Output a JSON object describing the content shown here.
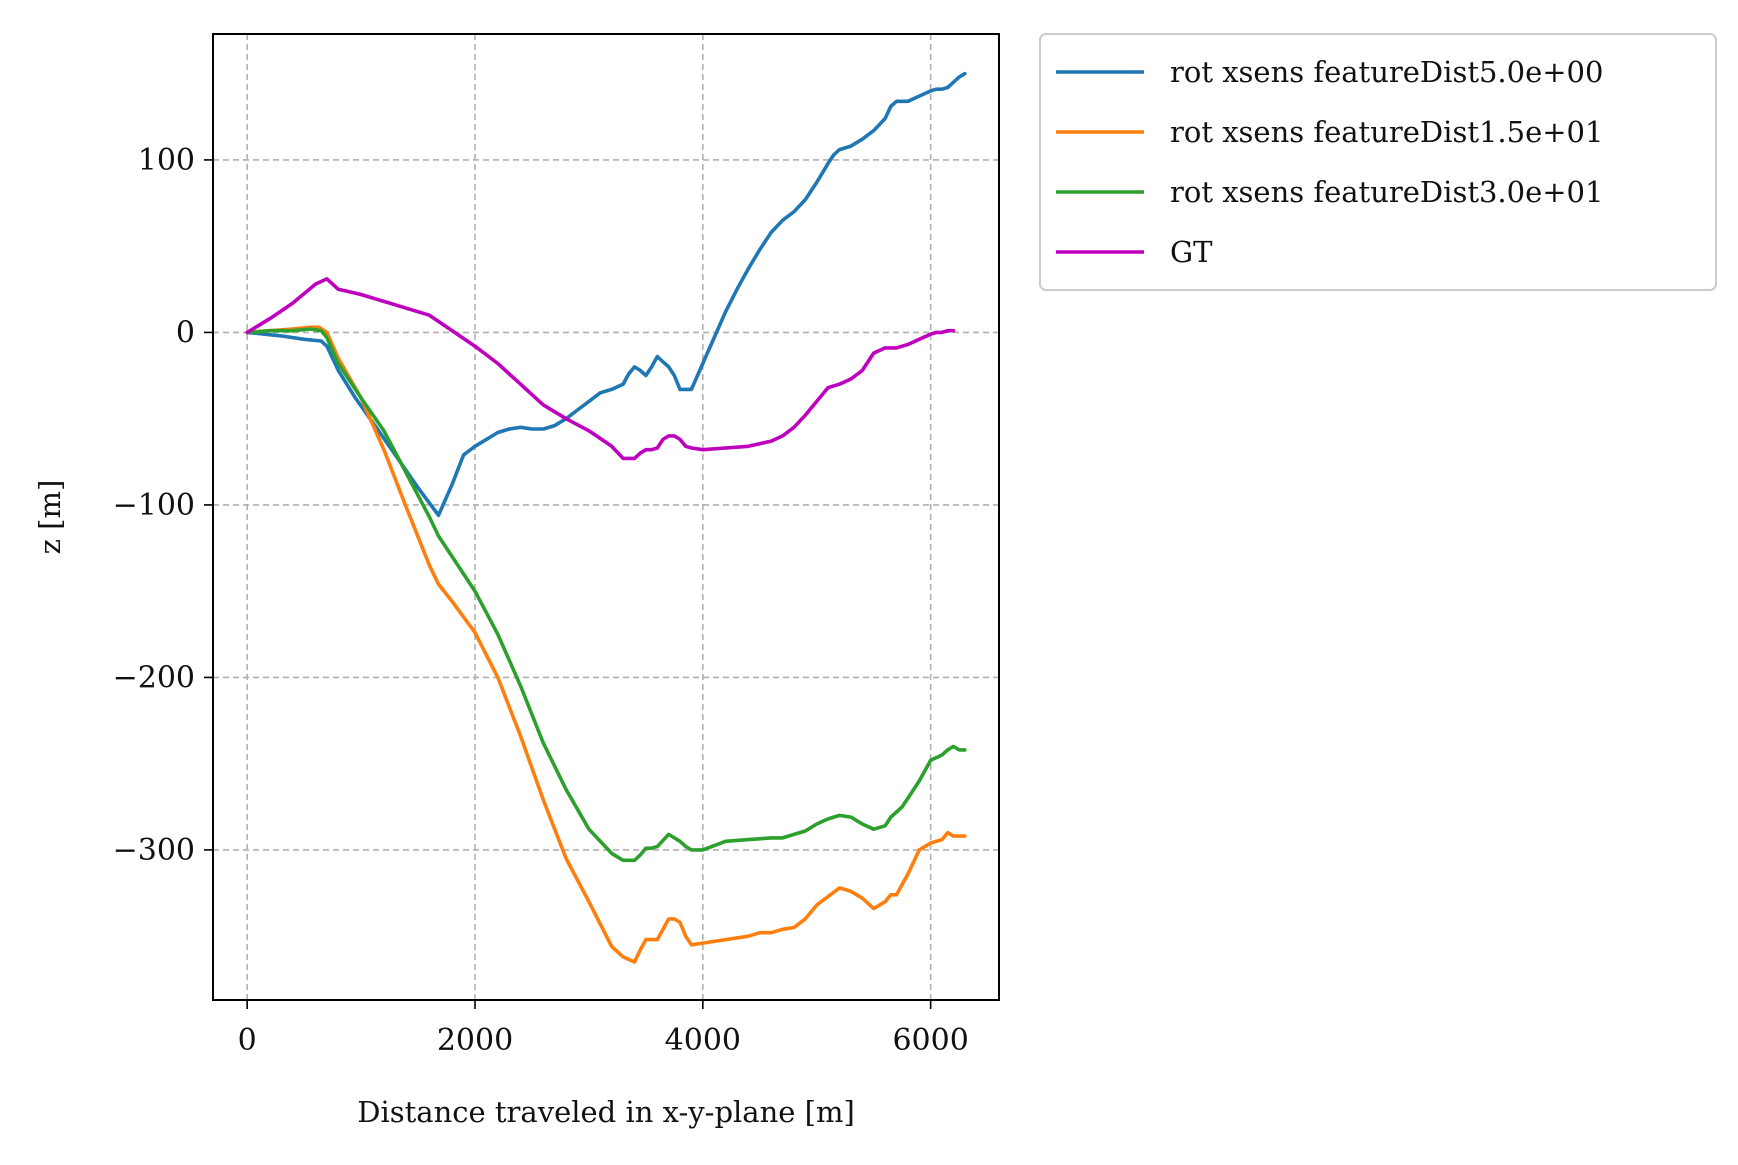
{
  "chart_data": {
    "type": "line",
    "title": "",
    "xlabel": "Distance traveled in x-y-plane [m]",
    "ylabel": "z [m]",
    "xlim": [
      -300,
      6600
    ],
    "ylim": [
      -387,
      173
    ],
    "xticks": [
      0,
      2000,
      4000,
      6000
    ],
    "xtick_labels": [
      "0",
      "2000",
      "4000",
      "6000"
    ],
    "yticks": [
      100,
      0,
      -100,
      -200,
      -300
    ],
    "ytick_labels": [
      "100",
      "0",
      "−100",
      "−200",
      "−300"
    ],
    "grid": true,
    "legend_position": "outside-top-right",
    "series": [
      {
        "name": "rot xsens featureDist5.0e+00",
        "color": "#1f77b4",
        "x": [
          0,
          300,
          500,
          650,
          700,
          800,
          950,
          1100,
          1300,
          1500,
          1680,
          1800,
          1900,
          2000,
          2100,
          2200,
          2300,
          2400,
          2500,
          2600,
          2700,
          2800,
          2900,
          3000,
          3100,
          3200,
          3300,
          3350,
          3400,
          3450,
          3500,
          3550,
          3600,
          3650,
          3700,
          3750,
          3800,
          3850,
          3900,
          4000,
          4100,
          4200,
          4300,
          4400,
          4500,
          4600,
          4700,
          4800,
          4900,
          5000,
          5100,
          5150,
          5200,
          5300,
          5400,
          5500,
          5600,
          5650,
          5700,
          5800,
          5900,
          6000,
          6050,
          6100,
          6150,
          6200,
          6250,
          6300
        ],
        "y": [
          0,
          -2,
          -4,
          -5,
          -8,
          -22,
          -38,
          -52,
          -71,
          -90,
          -106,
          -88,
          -71,
          -66,
          -62,
          -58,
          -56,
          -55,
          -56,
          -56,
          -54,
          -50,
          -45,
          -40,
          -35,
          -33,
          -30,
          -24,
          -20,
          -22,
          -25,
          -20,
          -14,
          -17,
          -20,
          -25,
          -33,
          -33,
          -33,
          -18,
          -3,
          12,
          25,
          37,
          48,
          58,
          65,
          70,
          77,
          87,
          98,
          103,
          106,
          108,
          112,
          117,
          124,
          131,
          134,
          134,
          137,
          140,
          141,
          141,
          142,
          145,
          148,
          150
        ]
      },
      {
        "name": "rot xsens featureDist1.5e+01",
        "color": "#ff7f0e",
        "x": [
          0,
          200,
          400,
          550,
          630,
          700,
          800,
          1000,
          1200,
          1400,
          1600,
          1680,
          1800,
          2000,
          2200,
          2400,
          2600,
          2800,
          3000,
          3200,
          3300,
          3400,
          3450,
          3500,
          3550,
          3600,
          3650,
          3700,
          3750,
          3800,
          3850,
          3900,
          4000,
          4200,
          4400,
          4500,
          4600,
          4700,
          4800,
          4900,
          5000,
          5100,
          5200,
          5300,
          5400,
          5500,
          5600,
          5650,
          5700,
          5750,
          5800,
          5900,
          6000,
          6100,
          6150,
          6200,
          6250,
          6300
        ],
        "y": [
          0,
          1,
          2,
          3,
          3,
          0,
          -15,
          -38,
          -68,
          -102,
          -135,
          -146,
          -156,
          -174,
          -200,
          -234,
          -271,
          -305,
          -330,
          -356,
          -362,
          -365,
          -358,
          -352,
          -352,
          -352,
          -346,
          -340,
          -340,
          -342,
          -350,
          -355,
          -354,
          -352,
          -350,
          -348,
          -348,
          -346,
          -345,
          -340,
          -332,
          -327,
          -322,
          -324,
          -328,
          -334,
          -330,
          -326,
          -326,
          -320,
          -314,
          -300,
          -296,
          -294,
          -290,
          -292,
          -292,
          -292
        ]
      },
      {
        "name": "rot xsens featureDist3.0e+01",
        "color": "#2ca02c",
        "x": [
          0,
          200,
          400,
          550,
          650,
          700,
          800,
          1000,
          1200,
          1400,
          1600,
          1680,
          1800,
          2000,
          2200,
          2400,
          2600,
          2800,
          3000,
          3200,
          3300,
          3400,
          3450,
          3500,
          3550,
          3600,
          3700,
          3800,
          3850,
          3900,
          4000,
          4200,
          4400,
          4600,
          4700,
          4800,
          4900,
          5000,
          5100,
          5200,
          5300,
          5400,
          5500,
          5600,
          5650,
          5700,
          5750,
          5800,
          5900,
          6000,
          6100,
          6150,
          6200,
          6250,
          6300
        ],
        "y": [
          0,
          1,
          1,
          2,
          1,
          -3,
          -18,
          -38,
          -57,
          -82,
          -107,
          -118,
          -130,
          -150,
          -175,
          -205,
          -238,
          -265,
          -288,
          -302,
          -306,
          -306,
          -303,
          -299,
          -299,
          -298,
          -291,
          -295,
          -298,
          -300,
          -300,
          -295,
          -294,
          -293,
          -293,
          -291,
          -289,
          -285,
          -282,
          -280,
          -281,
          -285,
          -288,
          -286,
          -281,
          -278,
          -275,
          -270,
          -260,
          -248,
          -245,
          -242,
          -240,
          -242,
          -242
        ]
      },
      {
        "name": "GT",
        "color": "#bf00bf",
        "x": [
          0,
          200,
          400,
          600,
          700,
          800,
          1000,
          1200,
          1400,
          1600,
          1800,
          2000,
          2200,
          2400,
          2600,
          2800,
          3000,
          3200,
          3300,
          3400,
          3450,
          3500,
          3550,
          3600,
          3650,
          3700,
          3750,
          3800,
          3850,
          3900,
          4000,
          4200,
          4400,
          4600,
          4700,
          4800,
          4900,
          5000,
          5100,
          5200,
          5300,
          5400,
          5500,
          5600,
          5650,
          5700,
          5750,
          5800,
          5900,
          6000,
          6050,
          6100,
          6150,
          6200
        ],
        "y": [
          0,
          8,
          17,
          28,
          31,
          25,
          22,
          18,
          14,
          10,
          1,
          -8,
          -18,
          -30,
          -42,
          -50,
          -57,
          -66,
          -73,
          -73,
          -70,
          -68,
          -68,
          -67,
          -62,
          -60,
          -60,
          -62,
          -66,
          -67,
          -68,
          -67,
          -66,
          -63,
          -60,
          -55,
          -48,
          -40,
          -32,
          -30,
          -27,
          -22,
          -12,
          -9,
          -9,
          -9,
          -8,
          -7,
          -4,
          -1,
          0,
          0,
          1,
          1
        ]
      }
    ]
  }
}
